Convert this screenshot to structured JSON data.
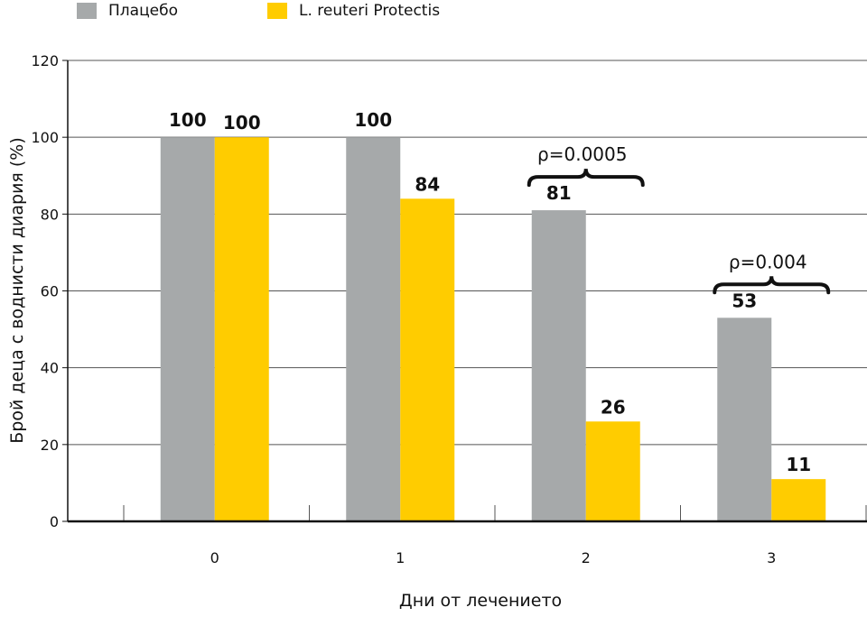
{
  "legend": [
    {
      "label": "Плацебо",
      "color": "#a6a9aa"
    },
    {
      "label": "L. reuteri Protectis",
      "color": "#ffcc00"
    }
  ],
  "chart_data": {
    "type": "bar",
    "xlabel": "Дни от лечението",
    "ylabel": "Брой деца  с воднисти диария (%)",
    "ylim": [
      0,
      120
    ],
    "yticks": [
      0,
      20,
      40,
      60,
      80,
      100,
      120
    ],
    "grid": true,
    "legend_position": "top-left",
    "categories": [
      "0",
      "1",
      "2",
      "3"
    ],
    "series": [
      {
        "name": "Плацебо",
        "color": "#a6a9aa",
        "values": [
          100,
          100,
          81,
          53
        ]
      },
      {
        "name": "L. reuteri Protectis",
        "color": "#ffcc00",
        "values": [
          100,
          84,
          26,
          11
        ]
      }
    ],
    "data_labels": [
      [
        "100",
        "100",
        "81",
        "53"
      ],
      [
        "100",
        "84",
        "26",
        "11"
      ]
    ],
    "annotations": [
      {
        "text": "ρ=0.0005",
        "category": "2"
      },
      {
        "text": "ρ=0.004",
        "category": "3"
      }
    ]
  }
}
